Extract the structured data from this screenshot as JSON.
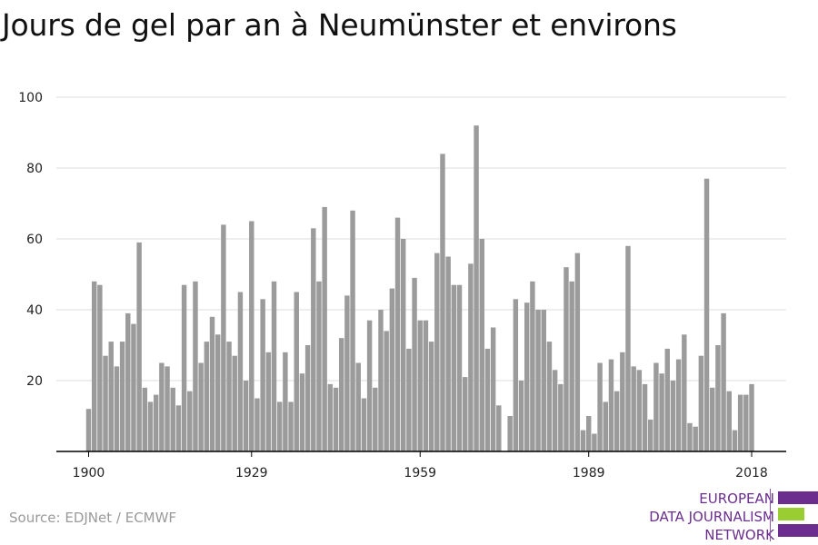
{
  "title": "Jours de gel par an à Neumünster et environs",
  "source": "Source: EDJNet / ECMWF",
  "logo": {
    "line1": "EUROPEAN",
    "line2": "DATA JOURNALISM",
    "line3": "NETWORK",
    "colors": {
      "purple": "#6b2e8f",
      "green": "#9acd32"
    }
  },
  "chart_data": {
    "type": "bar",
    "title": "Jours de gel par an à Neumünster et environs",
    "xlabel": "",
    "ylabel": "",
    "ylim": [
      0,
      100
    ],
    "yticks": [
      20,
      40,
      60,
      80,
      100
    ],
    "xticks": [
      1900,
      1929,
      1959,
      1989,
      2018
    ],
    "grid": true,
    "bar_color": "#9b9b9b",
    "x_start": 1900,
    "x_end": 2018,
    "values": [
      12,
      48,
      47,
      27,
      31,
      24,
      31,
      39,
      36,
      59,
      18,
      14,
      16,
      25,
      24,
      18,
      13,
      47,
      17,
      48,
      25,
      31,
      38,
      33,
      64,
      31,
      27,
      45,
      20,
      65,
      15,
      43,
      28,
      48,
      14,
      28,
      14,
      45,
      22,
      30,
      63,
      48,
      69,
      19,
      18,
      32,
      44,
      68,
      25,
      15,
      37,
      18,
      40,
      34,
      46,
      66,
      60,
      29,
      49,
      37,
      37,
      31,
      56,
      84,
      55,
      47,
      47,
      21,
      53,
      92,
      60,
      29,
      35,
      13,
      0,
      10,
      43,
      20,
      42,
      48,
      40,
      40,
      31,
      23,
      19,
      52,
      48,
      56,
      6,
      10,
      5,
      25,
      14,
      26,
      17,
      28,
      58,
      24,
      23,
      19,
      9,
      25,
      22,
      29,
      20,
      26,
      33,
      8,
      7,
      27,
      77,
      18,
      30,
      39,
      17,
      6,
      16,
      16,
      19
    ]
  }
}
